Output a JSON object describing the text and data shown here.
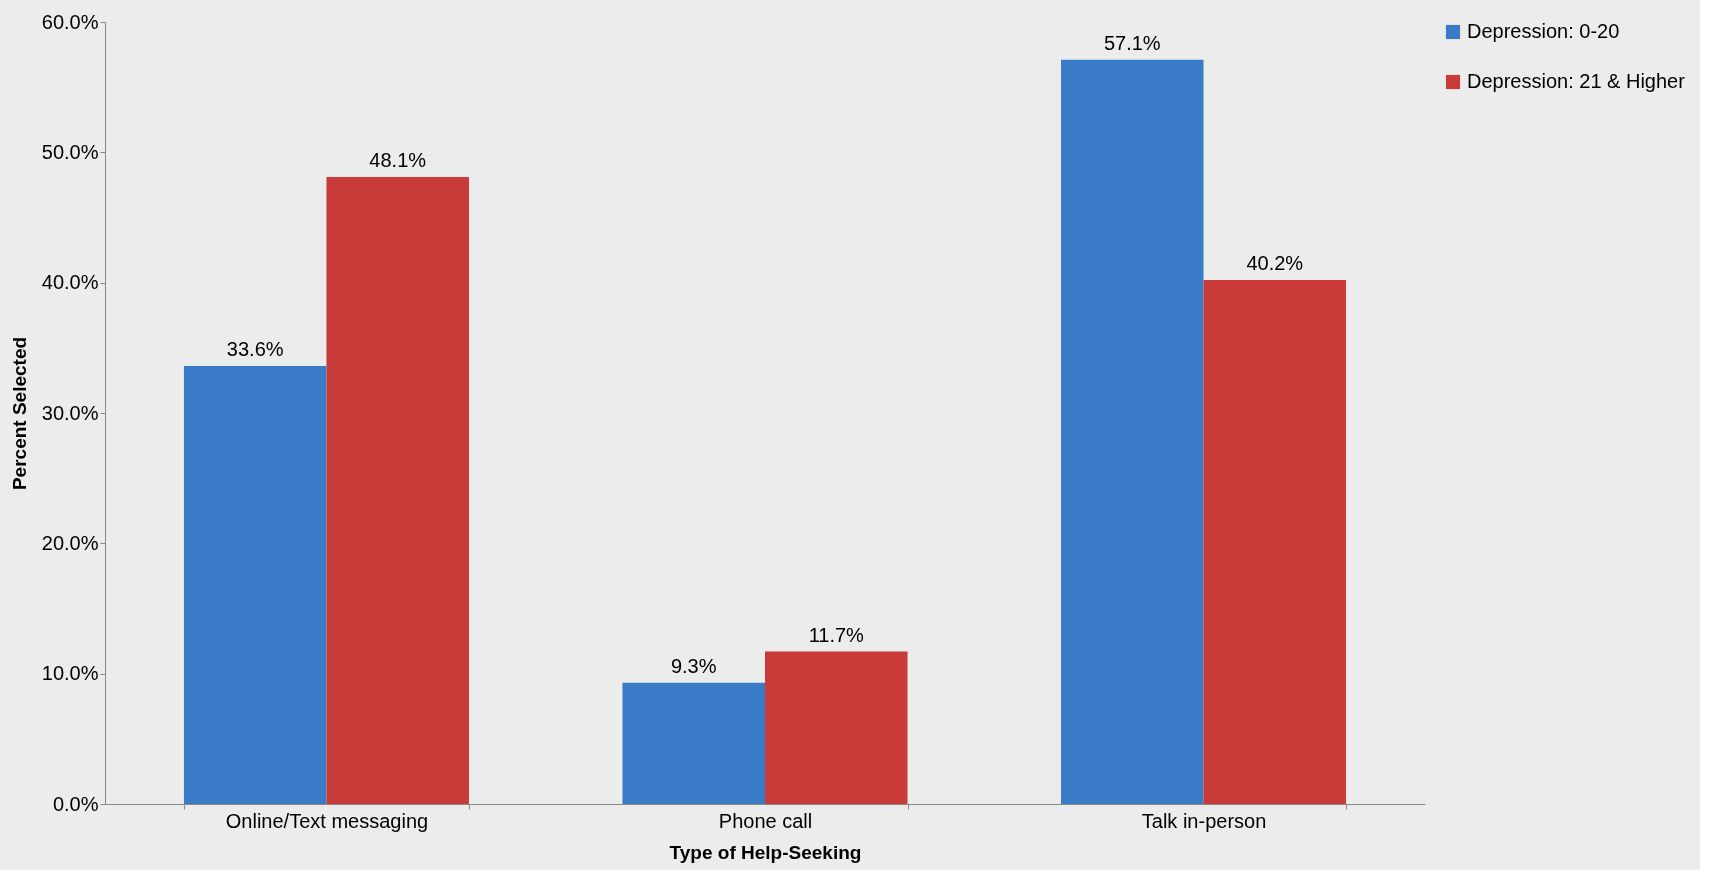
{
  "chart_data": {
    "type": "bar",
    "xlabel": "Type of Help-Seeking",
    "ylabel": "Percent Selected",
    "categories": [
      "Online/Text messaging",
      "Phone call",
      "Talk in-person"
    ],
    "series": [
      {
        "name": "Depression: 0-20",
        "color": "#3a7bc8",
        "values": [
          33.6,
          9.3,
          57.1
        ],
        "value_labels": [
          "33.6%",
          "9.3%",
          "57.1%"
        ]
      },
      {
        "name": "Depression: 21 & Higher",
        "color": "#c93b38",
        "values": [
          48.1,
          11.7,
          40.2
        ],
        "value_labels": [
          "48.1%",
          "11.7%",
          "40.2%"
        ]
      }
    ],
    "ylim": [
      0,
      60
    ],
    "yticks": [
      {
        "value": 0,
        "label": "0.0%"
      },
      {
        "value": 10,
        "label": "10.0%"
      },
      {
        "value": 20,
        "label": "20.0%"
      },
      {
        "value": 30,
        "label": "30.0%"
      },
      {
        "value": 40,
        "label": "40.0%"
      },
      {
        "value": 50,
        "label": "50.0%"
      },
      {
        "value": 60,
        "label": "60.0%"
      }
    ],
    "grid": false,
    "legend": "right"
  }
}
